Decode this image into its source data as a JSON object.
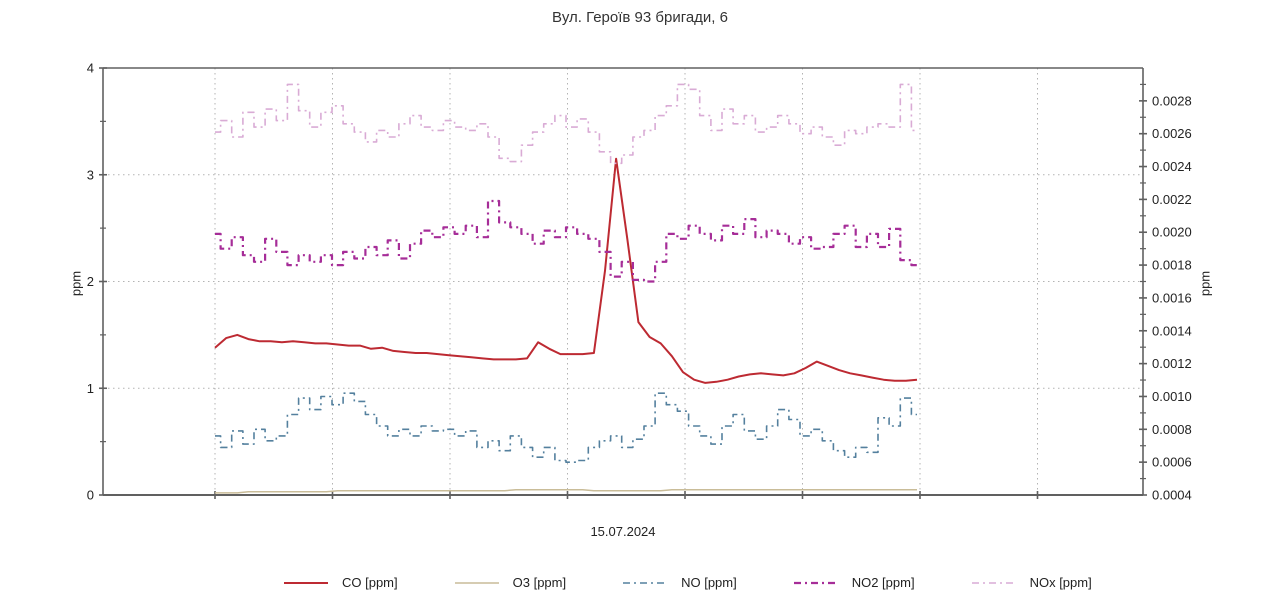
{
  "title": {
    "text": "Вул. Героїв 93 бригади, 6"
  },
  "x_axis": {
    "date": "15.07.2024"
  },
  "left_axis": {
    "label": "ppm",
    "min": 0,
    "max": 4,
    "major_ticks": [
      0,
      1,
      2,
      3,
      4
    ],
    "minor_ticks": [
      0.5,
      1.5,
      2.5,
      3.5
    ]
  },
  "right_axis": {
    "label": "ppm",
    "min": 0.0004,
    "max": 0.003,
    "major_tick_labels": [
      "0.0004",
      "0.0006",
      "0.0008",
      "0.0010",
      "0.0012",
      "0.0014",
      "0.0016",
      "0.0018",
      "0.0020",
      "0.0022",
      "0.0024",
      "0.0026",
      "0.0028"
    ],
    "minor_step": 0.0001
  },
  "colors": {
    "co": "#bd2a32",
    "o3": "#c9bc98",
    "no": "#54809e",
    "no2": "#a62d98",
    "nox": "#d9abd5",
    "grid": "#b3b3b3",
    "axis": "#606060",
    "text": "#222222"
  },
  "chart_data": {
    "type": "line",
    "title": "Вул. Героїв 93 бригади, 6",
    "xlabel": "15.07.2024",
    "left_ylabel": "ppm",
    "right_ylabel": "ppm",
    "left_ylim": [
      0,
      4
    ],
    "right_ylim": [
      0.0004,
      0.003
    ],
    "grid": true,
    "legend_position": "bottom",
    "series": [
      {
        "name": "CO [ppm]",
        "axis": "left",
        "color": "#bd2a32",
        "line_style": "solid",
        "interpolation": "linear",
        "values": [
          1.38,
          1.47,
          1.5,
          1.46,
          1.44,
          1.44,
          1.43,
          1.44,
          1.43,
          1.42,
          1.42,
          1.41,
          1.4,
          1.4,
          1.37,
          1.38,
          1.35,
          1.34,
          1.33,
          1.33,
          1.32,
          1.31,
          1.3,
          1.29,
          1.28,
          1.27,
          1.27,
          1.27,
          1.28,
          1.43,
          1.37,
          1.32,
          1.32,
          1.32,
          1.33,
          2.1,
          3.15,
          2.4,
          1.62,
          1.48,
          1.42,
          1.3,
          1.15,
          1.08,
          1.05,
          1.06,
          1.08,
          1.11,
          1.13,
          1.14,
          1.13,
          1.12,
          1.14,
          1.19,
          1.25,
          1.21,
          1.17,
          1.14,
          1.12,
          1.1,
          1.08,
          1.07,
          1.07,
          1.08
        ]
      },
      {
        "name": "O3 [ppm]",
        "axis": "left",
        "color": "#c9bc98",
        "line_style": "solid",
        "interpolation": "linear",
        "values": [
          0.02,
          0.02,
          0.02,
          0.03,
          0.03,
          0.03,
          0.03,
          0.03,
          0.03,
          0.03,
          0.03,
          0.04,
          0.04,
          0.04,
          0.04,
          0.04,
          0.04,
          0.04,
          0.04,
          0.04,
          0.04,
          0.04,
          0.04,
          0.04,
          0.04,
          0.04,
          0.04,
          0.05,
          0.05,
          0.05,
          0.05,
          0.05,
          0.05,
          0.05,
          0.04,
          0.04,
          0.04,
          0.04,
          0.04,
          0.04,
          0.04,
          0.05,
          0.05,
          0.05,
          0.05,
          0.05,
          0.05,
          0.05,
          0.05,
          0.05,
          0.05,
          0.05,
          0.05,
          0.05,
          0.05,
          0.05,
          0.05,
          0.05,
          0.05,
          0.05,
          0.05,
          0.05,
          0.05,
          0.05
        ]
      },
      {
        "name": "NO [ppm]",
        "axis": "right",
        "color": "#54809e",
        "line_style": "dash-dot",
        "interpolation": "step",
        "values": [
          0.00076,
          0.00069,
          0.00079,
          0.00071,
          0.0008,
          0.00073,
          0.00076,
          0.00089,
          0.00099,
          0.00092,
          0.001,
          0.00095,
          0.00102,
          0.00097,
          0.00089,
          0.00082,
          0.00076,
          0.0008,
          0.00076,
          0.00082,
          0.00079,
          0.0008,
          0.00076,
          0.00079,
          0.00069,
          0.00073,
          0.00067,
          0.00076,
          0.00069,
          0.00063,
          0.00069,
          0.00061,
          0.0006,
          0.00061,
          0.00069,
          0.00073,
          0.00076,
          0.00069,
          0.00074,
          0.00082,
          0.00102,
          0.00095,
          0.00091,
          0.00082,
          0.00076,
          0.00071,
          0.00082,
          0.00089,
          0.00079,
          0.00074,
          0.00082,
          0.00092,
          0.00086,
          0.00076,
          0.0008,
          0.00073,
          0.00067,
          0.00063,
          0.00069,
          0.00066,
          0.00087,
          0.00082,
          0.00099,
          0.00089
        ]
      },
      {
        "name": "NO2 [ppm]",
        "axis": "right",
        "color": "#a62d98",
        "line_style": "dash-dot",
        "interpolation": "step",
        "values": [
          0.00199,
          0.0019,
          0.00197,
          0.00186,
          0.00182,
          0.00196,
          0.00188,
          0.0018,
          0.00186,
          0.00182,
          0.00186,
          0.0018,
          0.00188,
          0.00184,
          0.00191,
          0.00186,
          0.00195,
          0.00184,
          0.00193,
          0.00201,
          0.00197,
          0.00203,
          0.00199,
          0.00204,
          0.00197,
          0.00219,
          0.00206,
          0.00203,
          0.00199,
          0.00193,
          0.00201,
          0.00197,
          0.00203,
          0.00199,
          0.00196,
          0.00188,
          0.00173,
          0.00182,
          0.00171,
          0.0017,
          0.00182,
          0.00199,
          0.00196,
          0.00204,
          0.00199,
          0.00195,
          0.00204,
          0.00199,
          0.00208,
          0.00197,
          0.00201,
          0.00199,
          0.00193,
          0.00197,
          0.0019,
          0.00191,
          0.00199,
          0.00204,
          0.00191,
          0.00199,
          0.00191,
          0.00202,
          0.00183,
          0.0018
        ]
      },
      {
        "name": "NOx [ppm]",
        "axis": "right",
        "color": "#d9abd5",
        "line_style": "dash-dot",
        "interpolation": "step",
        "values": [
          0.00261,
          0.00268,
          0.00258,
          0.00273,
          0.00264,
          0.00275,
          0.00268,
          0.0029,
          0.00274,
          0.00264,
          0.00273,
          0.00277,
          0.00266,
          0.00261,
          0.00255,
          0.00262,
          0.00258,
          0.00266,
          0.00271,
          0.00264,
          0.00262,
          0.00268,
          0.00264,
          0.00262,
          0.00266,
          0.00258,
          0.00245,
          0.00243,
          0.00253,
          0.00261,
          0.00266,
          0.00271,
          0.00264,
          0.00269,
          0.00261,
          0.00249,
          0.00242,
          0.00247,
          0.00258,
          0.00262,
          0.00271,
          0.00277,
          0.0029,
          0.00287,
          0.00271,
          0.00262,
          0.00275,
          0.00266,
          0.00271,
          0.00261,
          0.00264,
          0.00271,
          0.00266,
          0.0026,
          0.00264,
          0.00258,
          0.00253,
          0.00262,
          0.0026,
          0.00264,
          0.00266,
          0.00264,
          0.0029,
          0.00262
        ]
      }
    ]
  },
  "legend": {
    "items": [
      {
        "label": "CO [ppm]"
      },
      {
        "label": "O3 [ppm]"
      },
      {
        "label": "NO [ppm]"
      },
      {
        "label": "NO2 [ppm]"
      },
      {
        "label": "NOx [ppm]"
      }
    ]
  }
}
